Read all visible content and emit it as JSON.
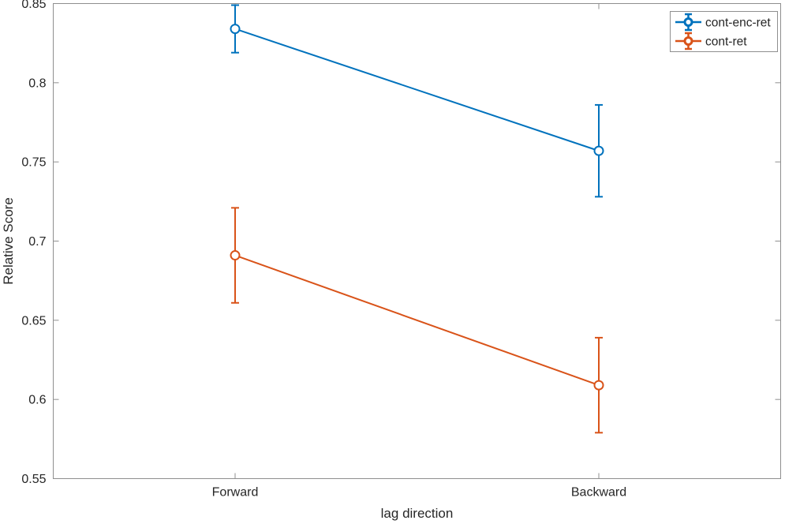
{
  "figure": {
    "background": "#ffffff",
    "axis_color": "#8f8f8f",
    "text_color": "#262626"
  },
  "chart_data": {
    "type": "line",
    "subtype": "errorbar",
    "title": "",
    "xlabel": "lag direction",
    "ylabel": "Relative Score",
    "categories": [
      "Forward",
      "Backward"
    ],
    "x": [
      1,
      2
    ],
    "xlim": [
      0.5,
      2.5
    ],
    "ylim": [
      0.55,
      0.85
    ],
    "yticks": [
      0.55,
      0.6,
      0.65,
      0.7,
      0.75,
      0.8,
      0.85
    ],
    "ytick_labels": [
      "0.55",
      "0.6",
      "0.65",
      "0.7",
      "0.75",
      "0.8",
      "0.85"
    ],
    "grid": false,
    "legend_position": "top-right",
    "legend_border": true,
    "series": [
      {
        "name": "cont-enc-ret",
        "color": "#0072BD",
        "marker": "circle-open",
        "values": [
          0.834,
          0.757
        ],
        "errors": [
          0.015,
          0.029
        ]
      },
      {
        "name": "cont-ret",
        "color": "#D95319",
        "marker": "circle-open",
        "values": [
          0.691,
          0.609
        ],
        "errors": [
          0.03,
          0.03
        ]
      }
    ]
  }
}
